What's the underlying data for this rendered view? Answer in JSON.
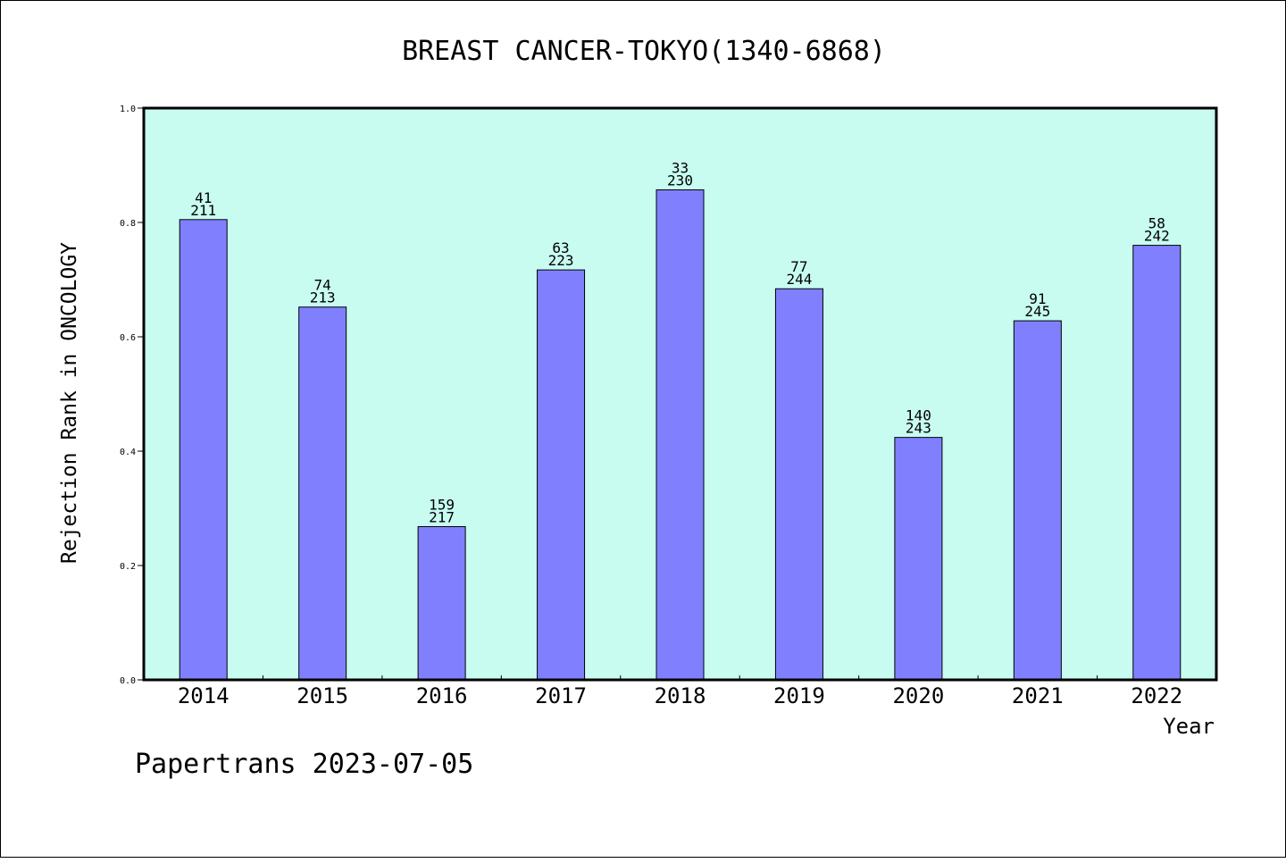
{
  "chart_data": {
    "type": "bar",
    "title": "BREAST CANCER-TOKYO(1340-6868)",
    "xlabel": "Year",
    "ylabel": "Rejection Rank in ONCOLOGY",
    "ylim": [
      0,
      1.0
    ],
    "yticks": [
      "0.0",
      "0.2",
      "0.4",
      "0.6",
      "0.8",
      "1.0"
    ],
    "categories": [
      "2014",
      "2015",
      "2016",
      "2017",
      "2018",
      "2019",
      "2020",
      "2021",
      "2022"
    ],
    "values": [
      0.805,
      0.652,
      0.268,
      0.717,
      0.857,
      0.684,
      0.424,
      0.628,
      0.76
    ],
    "labels_top": [
      "41",
      "74",
      "159",
      "63",
      "33",
      "77",
      "140",
      "91",
      "58"
    ],
    "labels_bottom": [
      "211",
      "213",
      "217",
      "223",
      "230",
      "244",
      "243",
      "245",
      "242"
    ],
    "grid": false,
    "colors": {
      "plot_bg": "#c8fcf0",
      "bar": "#8080ff",
      "bar_edge": "#000000"
    }
  },
  "footer": {
    "text": "Papertrans 2023-07-05"
  }
}
